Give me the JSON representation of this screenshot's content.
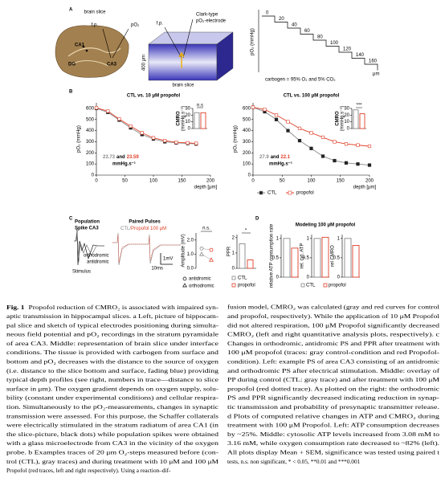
{
  "panel_a": {
    "label": "A",
    "slice_label": "brain slice",
    "fp": "f.p.",
    "po2": "pO₂",
    "ca1": "CA1",
    "dg": "DG",
    "ca3": "CA3",
    "fp2": "f.p.",
    "electrode": [
      "Clark-type",
      "pO₂-electrode"
    ],
    "thickness": "400 μm",
    "slice_label2": "brain slice",
    "depths": [
      "0",
      "20",
      "40",
      "60",
      "80",
      "100",
      "120",
      "140",
      "160"
    ],
    "depth_unit": "μm",
    "ylabel": "pO₂ (mmHg)",
    "carbogen": "carbogen = 95% O₂ and 5% CO₂"
  },
  "panel_b": {
    "label": "B",
    "plots": [
      {
        "title": "CTL vs. 10 μM propofol",
        "ylabel": "pO₂ (mmHg)",
        "xlabel": "depth [μm]",
        "xlim": [
          0,
          200
        ],
        "ylim": [
          0,
          650
        ],
        "xticks": [
          0,
          50,
          100,
          150,
          200
        ],
        "yticks": [
          0,
          100,
          200,
          300,
          400,
          500,
          600
        ],
        "x": [
          0,
          20,
          40,
          60,
          80,
          100,
          120,
          140,
          160,
          175
        ],
        "series": [
          {
            "color": "#888888",
            "values": [
              600,
              565,
              495,
              425,
              365,
              325,
              300,
              290,
              285,
              280
            ]
          },
          {
            "color": "#e0402a",
            "values": [
              605,
              575,
              505,
              440,
              380,
              335,
              310,
              295,
              290,
              285
            ]
          }
        ],
        "cmro": {
          "sig": "n.s",
          "ylabel": [
            "CMRO",
            "(mmHg.s⁻¹)"
          ],
          "ylim": [
            0,
            30
          ],
          "yticks": [
            0,
            10,
            20,
            30
          ],
          "values": [
            23.73,
            23.59
          ]
        },
        "and_text": "and",
        "unit": "mmHg.s⁻¹"
      },
      {
        "title": "CTL vs. 100 μM propofol",
        "ylabel": "pO₂ (mmHg)",
        "xlabel": "depth [μm]",
        "xlim": [
          0,
          200
        ],
        "ylim": [
          0,
          650
        ],
        "xticks": [
          0,
          50,
          100,
          150,
          200
        ],
        "yticks": [
          0,
          100,
          200,
          300,
          400,
          500,
          600
        ],
        "x": [
          0,
          20,
          40,
          60,
          80,
          100,
          120,
          140,
          160,
          180,
          200
        ],
        "series": [
          {
            "name": "CTL",
            "color": "#888888",
            "values": [
              610,
              570,
              500,
              400,
              310,
              240,
              170,
              130,
              110,
              100,
              90
            ]
          },
          {
            "name": "propofol",
            "color": "#e0402a",
            "values": [
              610,
              590,
              540,
              480,
              420,
              380,
              340,
              300,
              280,
              270,
              260
            ]
          }
        ],
        "cmro": {
          "sig": "***",
          "ylabel": [
            "CMRO",
            "(mmHg.s⁻¹)"
          ],
          "ylim": [
            0,
            30
          ],
          "yticks": [
            0,
            10,
            20,
            30
          ],
          "values": [
            27.9,
            22.1
          ]
        },
        "and_text": "and",
        "unit": "mmHg.s⁻¹"
      }
    ]
  },
  "panel_c": {
    "label": "C",
    "ps_title": [
      "Population",
      "Spike CA3"
    ],
    "ortho": "orthodromic",
    "anti": "antidromic",
    "stimulus": "Stimulus",
    "pp_title": "Paired Pulses",
    "pp_ctl": "CTL/",
    "pp_prop": "Propofol 100 μM",
    "scale_mv": "1mV",
    "scale_ms": "10ms",
    "amplitude": {
      "sig": "n.s.",
      "ylabel": "Amplitude (mV)",
      "ylim": [
        0,
        2.5
      ],
      "yticks": [
        {
          "value": 0,
          "label": "0.0"
        },
        {
          "value": 1,
          "label": "1.0"
        },
        {
          "value": 2,
          "label": "2.0"
        }
      ],
      "antidromic": [
        1.4,
        1.3
      ],
      "orthodromic": [
        1.0,
        0.6
      ],
      "legend": [
        "antidromic",
        "orthodromic"
      ]
    },
    "ppr": {
      "sig": "*",
      "ylabel": "PPR",
      "ylim": [
        0,
        2.2
      ],
      "yticks": [
        0,
        1,
        2
      ],
      "values": [
        1.6,
        0.55
      ],
      "legend": [
        "CTL",
        "propofol"
      ]
    }
  },
  "panel_d": {
    "label": "D",
    "title": "Modeling 100 μM propofol",
    "ylim": [
      0,
      1.1
    ],
    "yticks": [
      0,
      0.5,
      1
    ],
    "plots": [
      {
        "ylabel": "relative ATP consumption rate",
        "values": [
          1,
          0.75
        ]
      },
      {
        "ylabel": "rel. cyt. ATP",
        "values": [
          1,
          1.03
        ]
      },
      {
        "ylabel": "rel CMRO",
        "values": [
          1,
          0.82
        ]
      }
    ],
    "legend": [
      "CTL",
      "propofol"
    ]
  },
  "caption": {
    "figure_label": "Fig. 1",
    "left": [
      "Propofol reduction of CMRO₂ is associated with impaired syn-",
      "aptic transmission in hippocampal slices. a Left, picture of hippocam-",
      "pal slice and sketch of typical electrodes positioning during simulta-",
      "neous field potential and pO₂ recordings in the stratum pyramidale",
      "of area CA3. Middle: representation of brain slice under interface",
      "conditions. The tissue is provided with carbogen from surface and",
      "bottom and pO₂ decreases with the distance to the source of oxygen",
      "(i.e. distance to the slice bottom and surface, fading blue) providing",
      "typical depth profiles (see right, numbers in trace—distance to slice",
      "surface in μm). The oxygen gradient depends on oxygen supply, solu-",
      "bility (constant under experimental conditions) and cellular respira-",
      "tion. Simultaneously to the pO₂-measurements, changes in synaptic",
      "transmission were assessed. For this purpose, the Schaffer collaterals",
      "were electrically stimulated in the stratum radiatum of area CA1 (in",
      "the slice-picture, black dots) while population spikes were obtained",
      "with a glass microelectrode from CA3 in the vicinity of the oxygen",
      "probe. b Examples traces of 20 μm O₂-steps measured before (con-",
      "trol (CTL), gray traces) and during treatment with 10 μM and 100 μM",
      "Propofol (red traces, left and right respectively). Using a reaction–dif-"
    ],
    "right": [
      "fusion model, CMRO₂ was calculated (gray and red curves for control",
      "and propofol, respectively). While the application of 10 μM Propofol",
      "did not altered respiration, 100 μM Propofol significantly decreased",
      "CMRO₂ (left and right quantitative analysis plots, respectively). c",
      "Changes in orthodromic, antidromic PS and PPR after treatment with",
      "100 μM propofol (traces: gray control-condition and red Propofol-",
      "condition). Left: example PS of area CA3 consisting of an antidromic",
      "and orthodromic PS after electrical stimulation. Middle: overlay of",
      "PP during control (CTL: gray trace) and after treatment with 100 μM",
      "propofol (red dotted trace). As plotted on the right: the orthodromic",
      "PS and PPR significantly decreased indicating reduction in synap-",
      "tic transmission and probability of presynaptic transmitter release.",
      "d Plots of computed relative changes in ATP and CMRO₂ during",
      "treatment with 100 μM Propofol. Left: ATP consumption decreases",
      "by ~25%. Middle: cytosolic ATP levels increased from 3.08 mM to",
      "3.16 mM, while oxygen consumption rate decreased to ~82% (left).",
      "All plots display Mean + SEM, significance was tested using paired t",
      "tests, n.s. non significant, * < 0.05, **0.01 and ***0.001"
    ]
  }
}
